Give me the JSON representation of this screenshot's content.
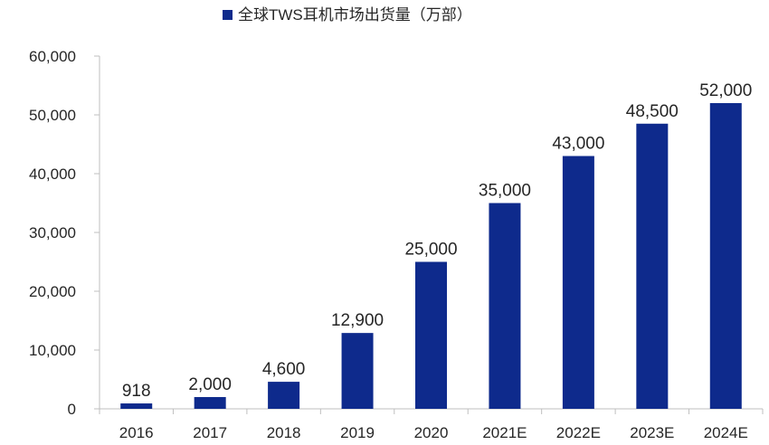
{
  "chart_data": {
    "type": "bar",
    "legend": {
      "label": "全球TWS耳机市场出货量（万部）",
      "placement": "top-center"
    },
    "categories": [
      "2016",
      "2017",
      "2018",
      "2019",
      "2020",
      "2021E",
      "2022E",
      "2023E",
      "2024E"
    ],
    "series": [
      {
        "name": "全球TWS耳机市场出货量（万部）",
        "values": [
          918,
          2000,
          4600,
          12900,
          25000,
          35000,
          43000,
          48500,
          52000
        ],
        "labels": [
          "918",
          "2,000",
          "4,600",
          "12,900",
          "25,000",
          "35,000",
          "43,000",
          "48,500",
          "52,000"
        ]
      }
    ],
    "ylim": [
      0,
      60000
    ],
    "yticks": [
      0,
      10000,
      20000,
      30000,
      40000,
      50000,
      60000
    ],
    "ytick_labels": [
      "0",
      "10,000",
      "20,000",
      "30,000",
      "40,000",
      "50,000",
      "60,000"
    ],
    "grid": false,
    "colors": {
      "bar": "#0e2a8c",
      "axis": "#bfbfbf",
      "text": "#262626"
    }
  }
}
